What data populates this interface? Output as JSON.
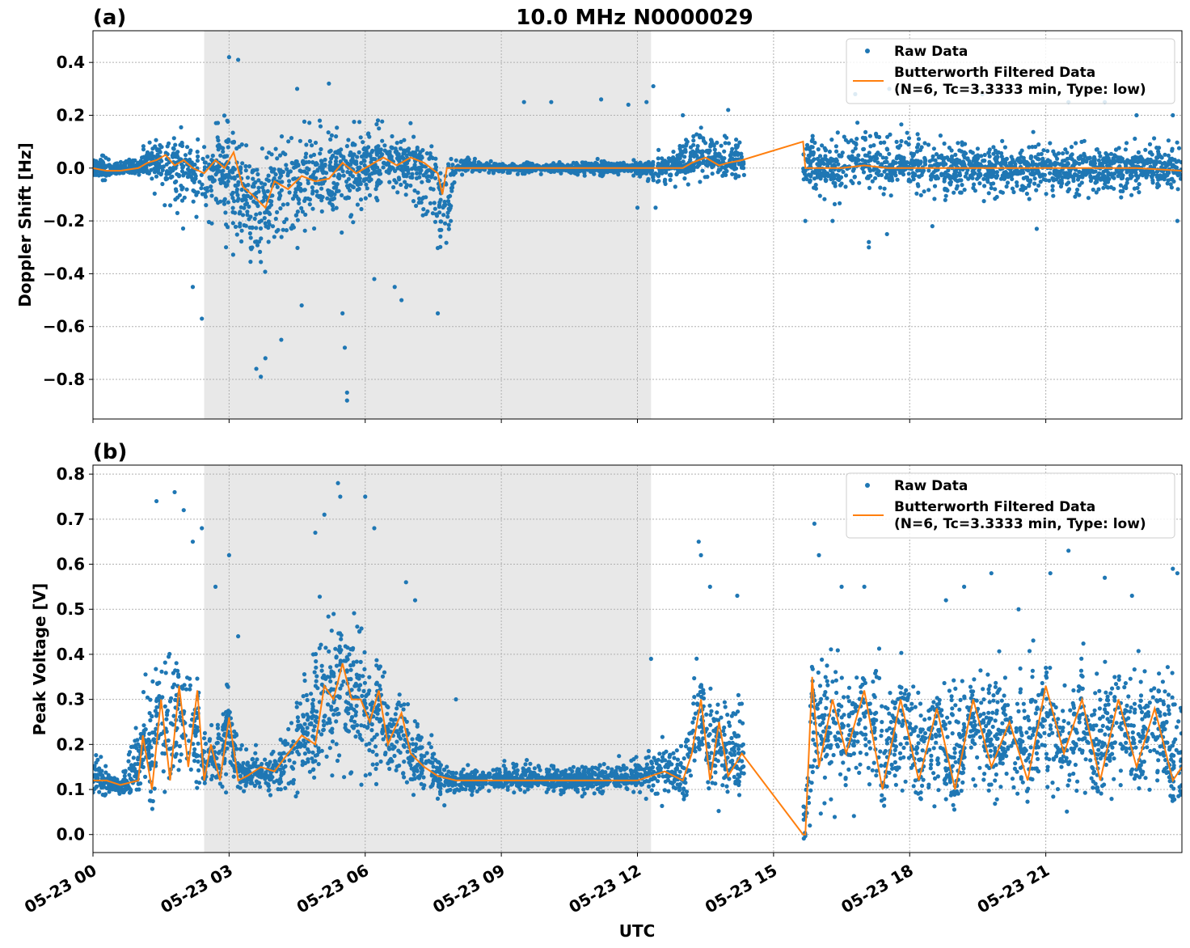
{
  "figure": {
    "title": "10.0 MHz N0000029",
    "xlabel": "UTC",
    "colors": {
      "raw": "#1f77b4",
      "filtered": "#ff7f0e",
      "shade": "#e8e8e8",
      "grid": "#b0b0b0"
    }
  },
  "chart_data": [
    {
      "type": "scatter",
      "panel_label": "(a)",
      "title": "10.0 MHz N0000029",
      "xlabel": "",
      "ylabel": "Doppler Shift [Hz]",
      "x_unit": "hours UTC on 05-23",
      "xlim": [
        0,
        24
      ],
      "ylim": [
        -0.95,
        0.52
      ],
      "yticks": [
        0.4,
        0.2,
        0.0,
        -0.2,
        -0.4,
        -0.6,
        -0.8
      ],
      "ytick_labels": [
        "0.4",
        "0.2",
        "0.0",
        "−0.2",
        "−0.4",
        "−0.6",
        "−0.8"
      ],
      "xticks": [
        0,
        3,
        6,
        9,
        12,
        15,
        18,
        21
      ],
      "shaded_region": [
        2.45,
        12.3
      ],
      "grid": true,
      "legend_position": "top-right",
      "legend": [
        "Raw Data",
        "Butterworth Filtered Data",
        "(N=6, Tc=3.3333 min, Type: low)"
      ],
      "series": [
        {
          "name": "Raw Data",
          "kind": "points",
          "envelope": {
            "x": [
              0,
              0.5,
              1,
              1.5,
              2,
              2.4,
              2.8,
              3.2,
              3.6,
              4,
              4.5,
              5,
              5.5,
              6,
              6.5,
              7,
              7.5,
              7.75,
              8,
              9,
              10,
              11,
              12,
              12.3,
              12.6,
              13,
              13.5,
              14,
              14.3,
              15.7,
              16,
              17,
              18,
              19,
              20,
              21,
              22,
              23,
              24
            ],
            "top": [
              0.12,
              0.03,
              0.06,
              0.2,
              0.22,
              0.15,
              0.3,
              0.25,
              0.18,
              0.2,
              0.25,
              0.25,
              0.22,
              0.25,
              0.22,
              0.15,
              0.1,
              0.05,
              0.05,
              0.03,
              0.03,
              0.04,
              0.04,
              0.06,
              0.1,
              0.15,
              0.17,
              0.16,
              0.14,
              0.2,
              0.15,
              0.2,
              0.18,
              0.15,
              0.15,
              0.15,
              0.15,
              0.15,
              0.12
            ],
            "bottom": [
              -0.1,
              -0.03,
              -0.05,
              -0.15,
              -0.3,
              -0.25,
              -0.3,
              -0.5,
              -0.55,
              -0.4,
              -0.4,
              -0.3,
              -0.3,
              -0.2,
              -0.15,
              -0.15,
              -0.3,
              -0.45,
              -0.03,
              -0.03,
              -0.03,
              -0.04,
              -0.04,
              -0.08,
              -0.1,
              -0.08,
              -0.08,
              -0.08,
              -0.08,
              -0.15,
              -0.15,
              -0.15,
              -0.15,
              -0.15,
              -0.15,
              -0.15,
              -0.15,
              -0.15,
              -0.12
            ]
          },
          "outliers": [
            [
              2.4,
              -0.57
            ],
            [
              2.2,
              -0.45
            ],
            [
              3.0,
              0.42
            ],
            [
              3.2,
              0.41
            ],
            [
              3.6,
              -0.76
            ],
            [
              3.7,
              -0.79
            ],
            [
              3.8,
              -0.72
            ],
            [
              4.15,
              -0.65
            ],
            [
              4.5,
              0.3
            ],
            [
              5.2,
              0.32
            ],
            [
              5.5,
              -0.55
            ],
            [
              5.55,
              -0.68
            ],
            [
              5.6,
              -0.85
            ],
            [
              5.6,
              -0.88
            ],
            [
              4.6,
              -0.52
            ],
            [
              6.2,
              -0.42
            ],
            [
              6.65,
              -0.45
            ],
            [
              6.8,
              -0.5
            ],
            [
              7.0,
              0.17
            ],
            [
              7.6,
              -0.55
            ],
            [
              9.5,
              0.25
            ],
            [
              10.1,
              0.25
            ],
            [
              11.2,
              0.26
            ],
            [
              11.8,
              0.24
            ],
            [
              12.0,
              -0.15
            ],
            [
              12.2,
              0.25
            ],
            [
              12.35,
              0.31
            ],
            [
              12.4,
              -0.15
            ],
            [
              15.7,
              -0.2
            ],
            [
              16.3,
              -0.2
            ],
            [
              17.1,
              -0.3
            ],
            [
              17.1,
              -0.28
            ],
            [
              16.8,
              0.28
            ],
            [
              17.55,
              0.3
            ],
            [
              17.5,
              -0.25
            ],
            [
              19.6,
              0.28
            ],
            [
              21.5,
              0.25
            ],
            [
              22.3,
              0.25
            ],
            [
              23.0,
              0.2
            ],
            [
              23.8,
              0.2
            ],
            [
              23.9,
              -0.2
            ],
            [
              20.8,
              -0.23
            ],
            [
              18.5,
              -0.22
            ],
            [
              14.0,
              0.22
            ],
            [
              13.0,
              0.2
            ]
          ]
        },
        {
          "name": "Butterworth Filtered Data",
          "kind": "line",
          "x": [
            0,
            0.3,
            0.6,
            1.0,
            1.2,
            1.4,
            1.6,
            1.8,
            2.0,
            2.2,
            2.45,
            2.7,
            2.9,
            3.1,
            3.3,
            3.5,
            3.8,
            4.0,
            4.3,
            4.6,
            4.9,
            5.2,
            5.5,
            5.8,
            6.1,
            6.4,
            6.7,
            7.0,
            7.3,
            7.6,
            7.7,
            7.8,
            8.5,
            9.0,
            9.5,
            10,
            11,
            12,
            12.5,
            13.0,
            13.2,
            13.5,
            13.8,
            14.0,
            14.3,
            15.65,
            15.7,
            16.0,
            16.5,
            17.0,
            17.5,
            18,
            19,
            20,
            21,
            22,
            23,
            24
          ],
          "y": [
            0.0,
            -0.01,
            -0.01,
            0.0,
            0.02,
            0.03,
            0.05,
            0.01,
            0.03,
            0.0,
            -0.02,
            0.03,
            0.0,
            0.06,
            -0.07,
            -0.1,
            -0.15,
            -0.05,
            -0.08,
            -0.03,
            -0.05,
            -0.04,
            0.02,
            -0.02,
            0.01,
            0.04,
            0.01,
            0.04,
            0.02,
            -0.02,
            -0.1,
            0.0,
            0.0,
            0.0,
            0.0,
            0.0,
            0.0,
            0.0,
            0.0,
            0.0,
            0.02,
            0.04,
            0.01,
            0.02,
            0.03,
            0.1,
            0.0,
            0.0,
            0.0,
            0.01,
            0.0,
            0.0,
            0.0,
            0.0,
            0.0,
            0.0,
            0.0,
            -0.01
          ]
        }
      ]
    },
    {
      "type": "scatter",
      "panel_label": "(b)",
      "title": "",
      "xlabel": "UTC",
      "ylabel": "Peak Voltage [V]",
      "x_unit": "hours UTC on 05-23",
      "xlim": [
        0,
        24
      ],
      "ylim": [
        -0.04,
        0.82
      ],
      "yticks": [
        0.8,
        0.7,
        0.6,
        0.5,
        0.4,
        0.3,
        0.2,
        0.1,
        0.0
      ],
      "ytick_labels": [
        "0.8",
        "0.7",
        "0.6",
        "0.5",
        "0.4",
        "0.3",
        "0.2",
        "0.1",
        "0.0"
      ],
      "xticks": [
        0,
        3,
        6,
        9,
        12,
        15,
        18,
        21
      ],
      "xtick_labels": [
        "05-23 00",
        "05-23 03",
        "05-23 06",
        "05-23 09",
        "05-23 12",
        "05-23 15",
        "05-23 18",
        "05-23 21"
      ],
      "shaded_region": [
        2.45,
        12.3
      ],
      "grid": true,
      "legend_position": "top-right",
      "legend": [
        "Raw Data",
        "Butterworth Filtered Data",
        "(N=6, Tc=3.3333 min, Type: low)"
      ],
      "series": [
        {
          "name": "Raw Data",
          "kind": "points",
          "envelope": {
            "x": [
              0,
              0.3,
              0.6,
              1.0,
              1.3,
              1.6,
              1.9,
              2.1,
              2.4,
              2.7,
              3.0,
              3.3,
              3.6,
              4.0,
              4.4,
              4.8,
              5.0,
              5.3,
              5.6,
              6.0,
              6.3,
              6.6,
              7.0,
              7.3,
              7.7,
              8.0,
              8.5,
              9.0,
              9.5,
              10,
              11,
              12,
              12.3,
              12.6,
              13.0,
              13.3,
              13.6,
              14.0,
              14.3,
              15.7,
              16.0,
              16.5,
              17,
              18,
              19,
              20,
              21,
              22,
              23,
              24
            ],
            "top": [
              0.25,
              0.15,
              0.13,
              0.3,
              0.45,
              0.55,
              0.45,
              0.45,
              0.3,
              0.25,
              0.4,
              0.22,
              0.2,
              0.22,
              0.3,
              0.45,
              0.6,
              0.58,
              0.6,
              0.48,
              0.45,
              0.4,
              0.32,
              0.25,
              0.2,
              0.16,
              0.16,
              0.17,
              0.18,
              0.17,
              0.17,
              0.18,
              0.22,
              0.25,
              0.22,
              0.45,
              0.35,
              0.38,
              0.35,
              0.1,
              0.5,
              0.45,
              0.45,
              0.42,
              0.42,
              0.45,
              0.45,
              0.45,
              0.45,
              0.45
            ],
            "bottom": [
              0.05,
              0.08,
              0.08,
              0.03,
              0.05,
              0.05,
              0.06,
              0.05,
              0.07,
              0.07,
              0.06,
              0.07,
              0.07,
              0.05,
              0.05,
              0.05,
              0.05,
              0.05,
              0.05,
              0.05,
              0.05,
              0.05,
              0.05,
              0.06,
              0.06,
              0.07,
              0.08,
              0.08,
              0.08,
              0.08,
              0.08,
              0.08,
              0.05,
              0.05,
              0.04,
              0.04,
              0.04,
              0.04,
              0.04,
              0.0,
              0.02,
              0.02,
              0.02,
              0.02,
              0.02,
              0.02,
              0.02,
              0.02,
              0.02,
              0.02
            ]
          },
          "outliers": [
            [
              1.4,
              0.74
            ],
            [
              1.8,
              0.76
            ],
            [
              2.0,
              0.72
            ],
            [
              2.2,
              0.65
            ],
            [
              2.4,
              0.68
            ],
            [
              2.7,
              0.55
            ],
            [
              3.0,
              0.62
            ],
            [
              3.2,
              0.44
            ],
            [
              4.9,
              0.67
            ],
            [
              5.1,
              0.71
            ],
            [
              5.4,
              0.78
            ],
            [
              5.45,
              0.75
            ],
            [
              6.0,
              0.75
            ],
            [
              6.2,
              0.68
            ],
            [
              6.9,
              0.56
            ],
            [
              7.1,
              0.52
            ],
            [
              8.0,
              0.3
            ],
            [
              12.3,
              0.39
            ],
            [
              13.35,
              0.65
            ],
            [
              13.4,
              0.62
            ],
            [
              13.6,
              0.55
            ],
            [
              14.2,
              0.53
            ],
            [
              15.7,
              0.0
            ],
            [
              15.8,
              0.02
            ],
            [
              15.9,
              0.69
            ],
            [
              16.0,
              0.62
            ],
            [
              16.5,
              0.55
            ],
            [
              17.0,
              0.55
            ],
            [
              19.2,
              0.55
            ],
            [
              19.8,
              0.58
            ],
            [
              21.1,
              0.58
            ],
            [
              21.5,
              0.63
            ],
            [
              22.3,
              0.57
            ],
            [
              22.9,
              0.53
            ],
            [
              23.8,
              0.59
            ],
            [
              23.9,
              0.58
            ],
            [
              18.8,
              0.52
            ],
            [
              20.4,
              0.5
            ]
          ]
        },
        {
          "name": "Butterworth Filtered Data",
          "kind": "line",
          "x": [
            0,
            0.3,
            0.6,
            1.0,
            1.1,
            1.3,
            1.5,
            1.7,
            1.9,
            2.1,
            2.3,
            2.45,
            2.6,
            2.8,
            3.0,
            3.2,
            3.4,
            3.7,
            4.0,
            4.3,
            4.6,
            4.9,
            5.1,
            5.3,
            5.5,
            5.7,
            5.9,
            6.1,
            6.3,
            6.5,
            6.8,
            7.0,
            7.3,
            7.6,
            8.0,
            8.5,
            9.0,
            10,
            11,
            12,
            12.3,
            12.6,
            13.0,
            13.2,
            13.4,
            13.6,
            13.8,
            14.0,
            14.3,
            15.65,
            15.7,
            15.85,
            16.0,
            16.3,
            16.6,
            17.0,
            17.4,
            17.8,
            18.2,
            18.6,
            19.0,
            19.4,
            19.8,
            20.2,
            20.6,
            21.0,
            21.4,
            21.8,
            22.2,
            22.6,
            23.0,
            23.4,
            23.8,
            24
          ],
          "y": [
            0.12,
            0.12,
            0.11,
            0.12,
            0.22,
            0.1,
            0.3,
            0.12,
            0.33,
            0.15,
            0.32,
            0.12,
            0.2,
            0.12,
            0.26,
            0.12,
            0.13,
            0.15,
            0.14,
            0.18,
            0.22,
            0.2,
            0.33,
            0.3,
            0.38,
            0.3,
            0.3,
            0.25,
            0.32,
            0.2,
            0.27,
            0.18,
            0.15,
            0.13,
            0.12,
            0.12,
            0.12,
            0.12,
            0.12,
            0.12,
            0.13,
            0.14,
            0.12,
            0.18,
            0.3,
            0.12,
            0.25,
            0.13,
            0.18,
            0.0,
            0.0,
            0.35,
            0.15,
            0.3,
            0.18,
            0.32,
            0.1,
            0.3,
            0.12,
            0.28,
            0.1,
            0.3,
            0.15,
            0.25,
            0.12,
            0.33,
            0.18,
            0.3,
            0.12,
            0.3,
            0.15,
            0.28,
            0.12,
            0.15
          ]
        }
      ]
    }
  ]
}
